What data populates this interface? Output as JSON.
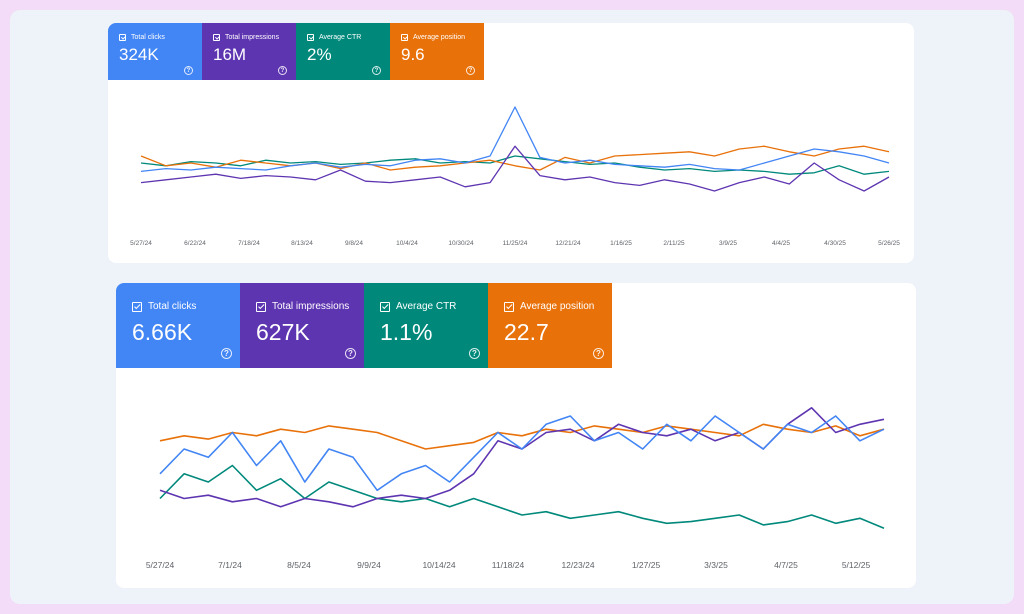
{
  "colors": {
    "clicks": "#4285f4",
    "impressions": "#5e35b1",
    "ctr": "#00897b",
    "position": "#e8710a"
  },
  "report1": {
    "metrics": [
      {
        "label": "Total clicks",
        "value": "324K"
      },
      {
        "label": "Total impressions",
        "value": "16M"
      },
      {
        "label": "Average CTR",
        "value": "2%"
      },
      {
        "label": "Average position",
        "value": "9.6"
      }
    ],
    "help_glyph": "?",
    "chart_data": {
      "type": "line",
      "title": "",
      "x_ticks": [
        "5/27/24",
        "6/22/24",
        "7/18/24",
        "8/13/24",
        "9/8/24",
        "10/4/24",
        "10/30/24",
        "11/25/24",
        "12/21/24",
        "1/16/25",
        "2/11/25",
        "3/9/25",
        "4/4/25",
        "4/30/25",
        "5/26/25"
      ],
      "series": [
        {
          "name": "Total clicks",
          "values": [
            44,
            46,
            45,
            47,
            46,
            45,
            48,
            50,
            47,
            49,
            48,
            52,
            53,
            50,
            55,
            90,
            54,
            50,
            52,
            49,
            48,
            47,
            49,
            46,
            45,
            50,
            55,
            60,
            58,
            55,
            50
          ]
        },
        {
          "name": "Total impressions",
          "values": [
            36,
            38,
            40,
            42,
            39,
            41,
            40,
            38,
            45,
            37,
            36,
            38,
            40,
            33,
            36,
            62,
            41,
            38,
            40,
            36,
            34,
            38,
            35,
            30,
            36,
            40,
            35,
            50,
            38,
            30,
            40
          ]
        },
        {
          "name": "Average CTR",
          "values": [
            50,
            48,
            51,
            50,
            48,
            52,
            50,
            51,
            49,
            50,
            52,
            53,
            50,
            51,
            50,
            55,
            53,
            51,
            49,
            50,
            47,
            45,
            46,
            44,
            45,
            44,
            42,
            43,
            48,
            42,
            44
          ]
        },
        {
          "name": "Average position",
          "values": [
            55,
            48,
            50,
            47,
            52,
            50,
            48,
            50,
            46,
            50,
            45,
            47,
            48,
            50,
            52,
            48,
            45,
            54,
            50,
            55,
            56,
            57,
            58,
            55,
            60,
            62,
            58,
            55,
            60,
            62,
            58
          ]
        }
      ]
    }
  },
  "report2": {
    "metrics": [
      {
        "label": "Total clicks",
        "value": "6.66K"
      },
      {
        "label": "Total impressions",
        "value": "627K"
      },
      {
        "label": "Average CTR",
        "value": "1.1%"
      },
      {
        "label": "Average position",
        "value": "22.7"
      }
    ],
    "help_glyph": "?",
    "chart_data": {
      "type": "line",
      "title": "",
      "x_ticks": [
        "5/27/24",
        "7/1/24",
        "8/5/24",
        "9/9/24",
        "10/14/24",
        "11/18/24",
        "12/23/24",
        "1/27/25",
        "3/3/25",
        "4/7/25",
        "5/12/25"
      ],
      "series": [
        {
          "name": "Total clicks",
          "values": [
            45,
            60,
            55,
            70,
            50,
            65,
            40,
            60,
            55,
            35,
            45,
            50,
            40,
            55,
            70,
            60,
            75,
            80,
            65,
            70,
            60,
            75,
            65,
            80,
            70,
            60,
            75,
            70,
            80,
            65,
            72
          ]
        },
        {
          "name": "Total impressions",
          "values": [
            35,
            30,
            32,
            28,
            30,
            25,
            30,
            28,
            25,
            30,
            32,
            30,
            35,
            45,
            65,
            60,
            70,
            72,
            65,
            75,
            70,
            68,
            72,
            65,
            70,
            60,
            75,
            85,
            70,
            75,
            78
          ]
        },
        {
          "name": "Average CTR",
          "values": [
            30,
            45,
            40,
            50,
            35,
            42,
            30,
            40,
            35,
            30,
            28,
            30,
            25,
            30,
            25,
            20,
            22,
            18,
            20,
            22,
            18,
            15,
            16,
            18,
            20,
            14,
            16,
            20,
            15,
            18,
            12
          ]
        },
        {
          "name": "Average position",
          "values": [
            65,
            68,
            66,
            70,
            68,
            72,
            70,
            74,
            72,
            70,
            65,
            60,
            62,
            64,
            70,
            68,
            72,
            70,
            74,
            72,
            70,
            74,
            72,
            70,
            68,
            75,
            72,
            70,
            74,
            68,
            72
          ]
        }
      ]
    }
  }
}
